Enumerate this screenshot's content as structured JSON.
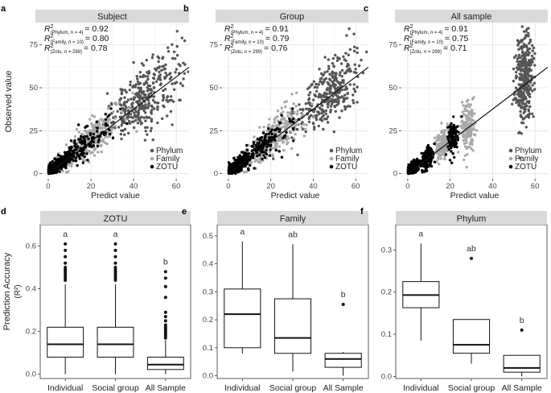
{
  "figure": {
    "top_ylabel": "Observed value",
    "bottom_ylabel_main": "Prediction Accuracy",
    "bottom_ylabel_sub": "(R²)"
  },
  "chart_data": [
    {
      "type": "scatter",
      "panel_letter": "a",
      "title": "Subject",
      "xlabel": "Predict value",
      "ylabel": "Observed value",
      "xlim": [
        -3,
        66
      ],
      "ylim": [
        -3,
        88
      ],
      "xticks": [
        0,
        20,
        40,
        60
      ],
      "yticks": [
        0,
        25,
        50,
        75
      ],
      "xtick_labels": [
        "0",
        "20",
        "40",
        "60"
      ],
      "ytick_labels": [
        "0",
        "25",
        "50",
        "75"
      ],
      "fit_line": {
        "from": [
          0,
          0
        ],
        "to": [
          66,
          62
        ]
      },
      "annotations": [
        {
          "sub": "(Phylum, n = 4)",
          "value": "= 0.92"
        },
        {
          "sub": "(Family, n = 10)",
          "value": "= 0.80"
        },
        {
          "sub": "(Zotu, n = 299)",
          "value": "= 0.78"
        }
      ],
      "series": [
        {
          "name": "Phylum",
          "color": "#555555",
          "clusters": [
            {
              "xc": 45,
              "xs": 9,
              "slope": 0.95,
              "off": 2,
              "noise": 9,
              "n": 360
            }
          ]
        },
        {
          "name": "Family",
          "color": "#a9a9a9",
          "clusters": [
            {
              "xc": 18,
              "xs": 8,
              "slope": 0.95,
              "off": 1,
              "noise": 8,
              "n": 320
            }
          ]
        },
        {
          "name": "ZOTU",
          "color": "#000000",
          "clusters": [
            {
              "xc": 3,
              "xs": 3,
              "slope": 0.9,
              "off": 1,
              "noise": 4,
              "n": 520
            },
            {
              "xc": 14,
              "xs": 7,
              "slope": 0.95,
              "off": 1,
              "noise": 7,
              "n": 180
            }
          ]
        }
      ]
    },
    {
      "type": "scatter",
      "panel_letter": "b",
      "title": "Group",
      "xlabel": "Predict value",
      "ylabel": "",
      "xlim": [
        -3,
        66
      ],
      "ylim": [
        -3,
        88
      ],
      "xticks": [
        0,
        20,
        40,
        60
      ],
      "yticks": [
        0,
        25,
        50,
        75
      ],
      "xtick_labels": [
        "0",
        "20",
        "40",
        "60"
      ],
      "ytick_labels": [
        "0",
        "25",
        "50",
        "75"
      ],
      "fit_line": {
        "from": [
          0,
          0
        ],
        "to": [
          66,
          62
        ]
      },
      "annotations": [
        {
          "sub": "(Phylum, n = 4)",
          "value": "= 0.91"
        },
        {
          "sub": "(Family, n = 10)",
          "value": "= 0.79"
        },
        {
          "sub": "(Zotu, n = 299)",
          "value": "= 0.76"
        }
      ],
      "series": [
        {
          "name": "Phylum",
          "color": "#555555",
          "clusters": [
            {
              "xc": 47,
              "xs": 8,
              "slope": 0.95,
              "off": 2,
              "noise": 9,
              "n": 340
            }
          ]
        },
        {
          "name": "Family",
          "color": "#a9a9a9",
          "clusters": [
            {
              "xc": 20,
              "xs": 8,
              "slope": 0.95,
              "off": 1,
              "noise": 8,
              "n": 300
            }
          ]
        },
        {
          "name": "ZOTU",
          "color": "#000000",
          "clusters": [
            {
              "xc": 3,
              "xs": 3,
              "slope": 0.9,
              "off": 1,
              "noise": 4,
              "n": 520
            },
            {
              "xc": 15,
              "xs": 7,
              "slope": 0.95,
              "off": 1,
              "noise": 7,
              "n": 170
            }
          ]
        }
      ]
    },
    {
      "type": "scatter",
      "panel_letter": "c",
      "title": "All sample",
      "xlabel": "Predict value",
      "ylabel": "",
      "xlim": [
        -3,
        66
      ],
      "ylim": [
        -3,
        88
      ],
      "xticks": [
        0,
        20,
        40,
        60
      ],
      "yticks": [
        0,
        25,
        50,
        75
      ],
      "xtick_labels": [
        "0",
        "20",
        "40",
        "60"
      ],
      "ytick_labels": [
        "0",
        "25",
        "50",
        "75"
      ],
      "fit_line": {
        "from": [
          0,
          0
        ],
        "to": [
          66,
          62
        ]
      },
      "annotations": [
        {
          "sub": "(Phylum, n = 4)",
          "value": "= 0.91"
        },
        {
          "sub": "(Family, n = 10)",
          "value": "= 0.75"
        },
        {
          "sub": "(Zotu, n = 299)",
          "value": "= 0.71"
        }
      ],
      "series": [
        {
          "name": "Phylum",
          "color": "#555555",
          "clusters": [
            {
              "xc": 55,
              "xs": 2.2,
              "slope": 0.95,
              "off": 3,
              "noise": 12,
              "n": 340
            }
          ]
        },
        {
          "name": "Family",
          "color": "#a9a9a9",
          "clusters": [
            {
              "xc": 16,
              "xs": 1.5,
              "slope": 0.9,
              "off": 2,
              "noise": 7,
              "n": 160
            },
            {
              "xc": 28,
              "xs": 1.8,
              "slope": 0.9,
              "off": 2,
              "noise": 9,
              "n": 160
            }
          ]
        },
        {
          "name": "ZOTU",
          "color": "#000000",
          "clusters": [
            {
              "xc": 2,
              "xs": 1.6,
              "slope": 0.9,
              "off": 1,
              "noise": 4,
              "n": 420
            },
            {
              "xc": 9,
              "xs": 1.3,
              "slope": 0.9,
              "off": 1,
              "noise": 7,
              "n": 140
            },
            {
              "xc": 21,
              "xs": 1.3,
              "slope": 0.9,
              "off": 1,
              "noise": 9,
              "n": 110
            }
          ]
        }
      ]
    },
    {
      "type": "box",
      "panel_letter": "d",
      "title": "ZOTU",
      "ylabel": "Prediction Accuracy (R²)",
      "ylim": [
        -0.02,
        0.7
      ],
      "yticks": [
        0,
        0.2,
        0.4,
        0.6
      ],
      "ytick_labels": [
        "0.0",
        "0.2",
        "0.4",
        "0.6"
      ],
      "categories": [
        "Individual",
        "Social group",
        "All Sample"
      ],
      "boxes": [
        {
          "whisker_low": 0.0,
          "q1": 0.08,
          "median": 0.14,
          "q3": 0.22,
          "whisker_high": 0.42,
          "outliers": [
            0.44,
            0.45,
            0.46,
            0.47,
            0.48,
            0.49,
            0.5,
            0.52,
            0.55,
            0.58,
            0.61
          ],
          "letter": "a"
        },
        {
          "whisker_low": 0.0,
          "q1": 0.08,
          "median": 0.14,
          "q3": 0.22,
          "whisker_high": 0.42,
          "outliers": [
            0.44,
            0.45,
            0.46,
            0.47,
            0.48,
            0.49,
            0.5,
            0.52,
            0.55,
            0.58,
            0.61
          ],
          "letter": "a"
        },
        {
          "whisker_low": 0.0,
          "q1": 0.022,
          "median": 0.045,
          "q3": 0.08,
          "whisker_high": 0.16,
          "outliers": [
            0.17,
            0.18,
            0.19,
            0.2,
            0.21,
            0.22,
            0.23,
            0.25,
            0.27,
            0.29,
            0.36,
            0.41,
            0.45,
            0.48
          ],
          "letter": "b"
        }
      ]
    },
    {
      "type": "box",
      "panel_letter": "e",
      "title": "Family",
      "ylabel": "",
      "ylim": [
        -0.01,
        0.54
      ],
      "yticks": [
        0,
        0.1,
        0.2,
        0.3,
        0.4,
        0.5
      ],
      "ytick_labels": [
        "0.0",
        "0.1",
        "0.2",
        "0.3",
        "0.4",
        "0.5"
      ],
      "categories": [
        "Individual",
        "Social group",
        "All Sample"
      ],
      "boxes": [
        {
          "whisker_low": 0.08,
          "q1": 0.1,
          "median": 0.22,
          "q3": 0.31,
          "whisker_high": 0.48,
          "outliers": [],
          "letter": "a"
        },
        {
          "whisker_low": 0.015,
          "q1": 0.08,
          "median": 0.135,
          "q3": 0.275,
          "whisker_high": 0.47,
          "outliers": [],
          "letter": "ab"
        },
        {
          "whisker_low": 0.0,
          "q1": 0.03,
          "median": 0.06,
          "q3": 0.08,
          "whisker_high": 0.085,
          "outliers": [
            0.255
          ],
          "letter": "b"
        }
      ]
    },
    {
      "type": "box",
      "panel_letter": "f",
      "title": "Phylum",
      "ylabel": "",
      "ylim": [
        -0.005,
        0.36
      ],
      "yticks": [
        0,
        0.1,
        0.2,
        0.3
      ],
      "ytick_labels": [
        "0.0",
        "0.1",
        "0.2",
        "0.3"
      ],
      "categories": [
        "Individual",
        "Social group",
        "All Sample"
      ],
      "boxes": [
        {
          "whisker_low": 0.085,
          "q1": 0.163,
          "median": 0.193,
          "q3": 0.225,
          "whisker_high": 0.315,
          "outliers": [],
          "letter": "a"
        },
        {
          "whisker_low": 0.03,
          "q1": 0.055,
          "median": 0.075,
          "q3": 0.135,
          "whisker_high": 0.135,
          "outliers": [
            0.28
          ],
          "letter": "ab"
        },
        {
          "whisker_low": 0.0,
          "q1": 0.01,
          "median": 0.02,
          "q3": 0.05,
          "whisker_high": 0.05,
          "outliers": [
            0.11
          ],
          "letter": "b"
        }
      ]
    }
  ]
}
